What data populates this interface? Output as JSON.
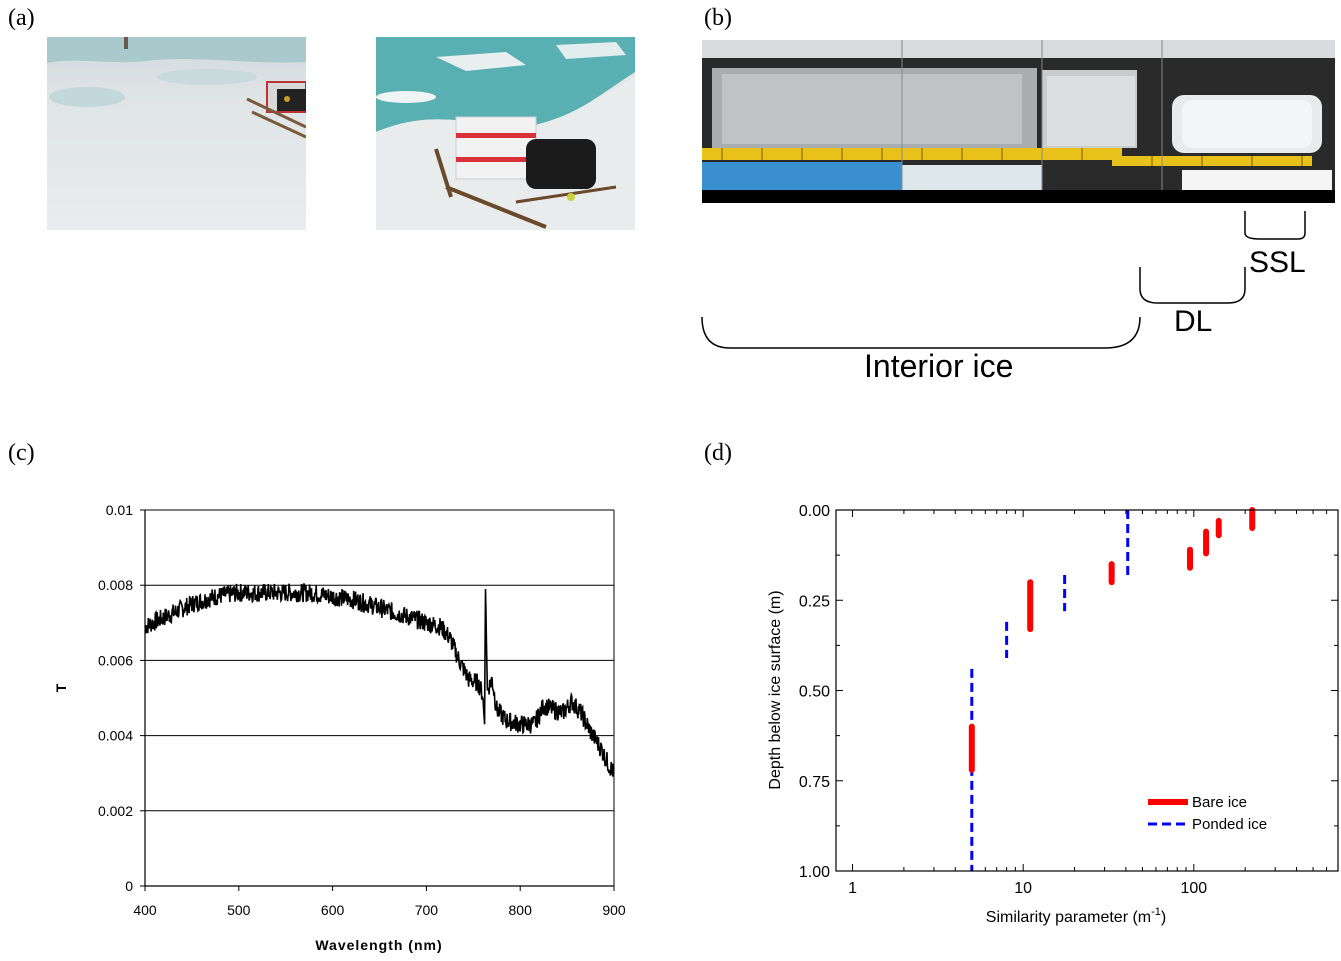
{
  "panels": {
    "a": "(a)",
    "b": "(b)",
    "c": "(c)",
    "d": "(d)"
  },
  "core_labels": {
    "ssl": "SSL",
    "dl": "DL",
    "interior": "Interior ice"
  },
  "chart_data": [
    {
      "id": "c",
      "type": "line",
      "xlabel": "Wavelength (nm)",
      "ylabel": "T",
      "xlim": [
        400,
        900
      ],
      "ylim": [
        0,
        0.01
      ],
      "xticks": [
        "400",
        "500",
        "600",
        "700",
        "800",
        "900"
      ],
      "yticks": [
        "0",
        "0.002",
        "0.004",
        "0.006",
        "0.008",
        "0.01"
      ],
      "grid": "horizontal",
      "series": [
        {
          "color": "#000000",
          "x": [
            400,
            425,
            450,
            475,
            500,
            525,
            550,
            575,
            600,
            625,
            650,
            675,
            700,
            715,
            725,
            735,
            745,
            755,
            760,
            762,
            763,
            765,
            770,
            775,
            785,
            800,
            815,
            825,
            835,
            845,
            855,
            865,
            875,
            885,
            895,
            900
          ],
          "y": [
            0.0069,
            0.0072,
            0.0075,
            0.0077,
            0.0078,
            0.0078,
            0.0078,
            0.0078,
            0.0077,
            0.0076,
            0.0074,
            0.0072,
            0.007,
            0.0069,
            0.0066,
            0.006,
            0.0055,
            0.0054,
            0.0051,
            0.0043,
            0.0079,
            0.0052,
            0.0055,
            0.0047,
            0.0044,
            0.0043,
            0.0043,
            0.0048,
            0.0047,
            0.0046,
            0.0049,
            0.0046,
            0.0041,
            0.0037,
            0.0032,
            0.003
          ]
        }
      ]
    },
    {
      "id": "d",
      "type": "line",
      "xlabel": "Similarity parameter (m",
      "xlabel_sup": "-1",
      "xlabel_tail": ")",
      "ylabel": "Depth below ice surface (m)",
      "xscale": "log",
      "xlim": [
        0.8,
        700
      ],
      "ylim": [
        1.0,
        0.0
      ],
      "xticks": [
        "1",
        "10",
        "100"
      ],
      "yticks": [
        "0.00",
        "0.25",
        "0.50",
        "0.75",
        "1.00"
      ],
      "legend_position": "bottom-right",
      "series": [
        {
          "name": "Bare ice",
          "color": "#ff0000",
          "style": "solid",
          "segments": [
            {
              "x": 5,
              "y": [
                0.6,
                0.72
              ]
            },
            {
              "x": 11,
              "y": [
                0.2,
                0.33
              ]
            },
            {
              "x": 33,
              "y": [
                0.15,
                0.2
              ]
            },
            {
              "x": 95,
              "y": [
                0.11,
                0.16
              ]
            },
            {
              "x": 118,
              "y": [
                0.06,
                0.12
              ]
            },
            {
              "x": 140,
              "y": [
                0.03,
                0.07
              ]
            },
            {
              "x": 220,
              "y": [
                0.0,
                0.05
              ]
            }
          ]
        },
        {
          "name": "Ponded ice",
          "color": "#0000ff",
          "style": "dashed",
          "segments": [
            {
              "x": 5,
              "y": [
                0.44,
                1.0
              ]
            },
            {
              "x": 8,
              "y": [
                0.31,
                0.41
              ]
            },
            {
              "x": 17.5,
              "y": [
                0.18,
                0.28
              ]
            },
            {
              "x": 41,
              "y": [
                0.0,
                0.18
              ]
            }
          ]
        }
      ]
    }
  ]
}
